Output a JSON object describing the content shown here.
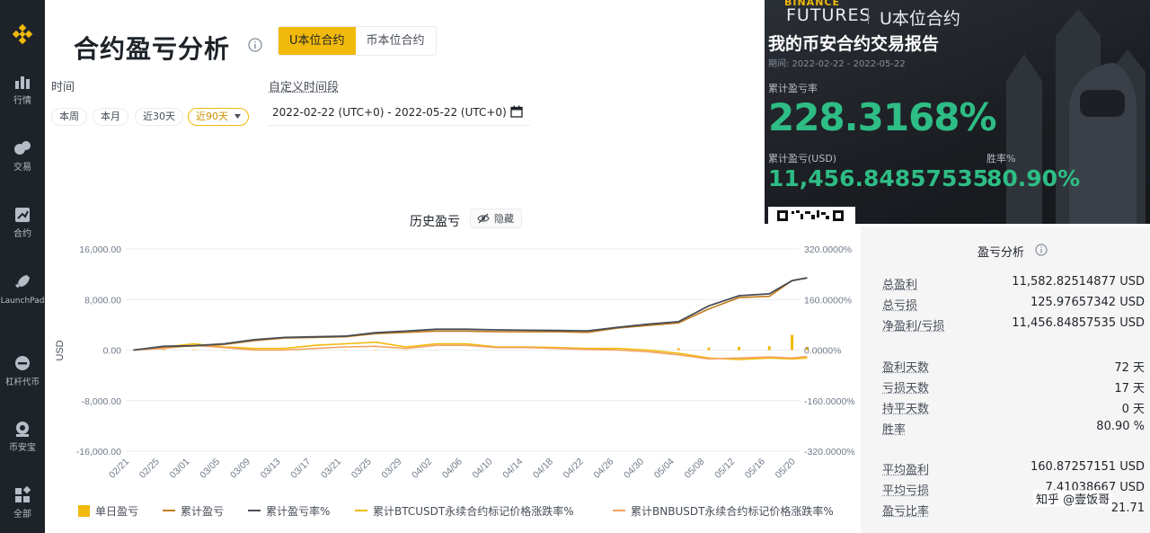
{
  "sidebar": {
    "items": [
      {
        "label": "行情",
        "icon": "market-chart-icon"
      },
      {
        "label": "交易",
        "icon": "trade-icon"
      },
      {
        "label": "合约",
        "icon": "futures-icon"
      },
      {
        "label": "LaunchPad",
        "icon": "rocket-icon"
      },
      {
        "label": "杠杆代币",
        "icon": "leveraged-token-icon"
      },
      {
        "label": "币安宝",
        "icon": "earn-icon"
      },
      {
        "label": "全部",
        "icon": "all-apps-icon"
      }
    ]
  },
  "header": {
    "title": "合约盈亏分析",
    "tabs": [
      {
        "label": "U本位合约",
        "active": true
      },
      {
        "label": "币本位合约",
        "active": false
      }
    ]
  },
  "filters": {
    "time_label": "时间",
    "presets": [
      "本周",
      "本月",
      "近30天",
      "近90天"
    ],
    "active_preset": "近90天",
    "custom_label": "自定义时间段",
    "date_range": "2022-02-22 (UTC+0)  -  2022-05-22 (UTC+0)"
  },
  "chart_header": {
    "title": "历史盈亏",
    "hide_label": "隐藏"
  },
  "colors": {
    "accent": "#f0b90b",
    "sidebar_bg": "#1e2329",
    "positive": "#2ebd85",
    "cum_pnl": "#c27c1b",
    "cum_roi": "#474d57",
    "btc": "#f0b90b",
    "bnb": "#f3a362"
  },
  "chart_data": {
    "type": "line",
    "ylabel": "USD",
    "ylim": [
      -16000,
      16000
    ],
    "y_ticks": [
      "16,000.00",
      "8,000.00",
      "0.00",
      "-8,000.00",
      "-16,000.00"
    ],
    "y2lim": [
      -320,
      320
    ],
    "y2_ticks": [
      "320.0000%",
      "160.0000%",
      "0.0000%",
      "-160.0000%",
      "-320.0000%"
    ],
    "x_labels": [
      "02/21",
      "02/25",
      "03/01",
      "03/05",
      "03/09",
      "03/13",
      "03/17",
      "03/21",
      "03/25",
      "03/29",
      "04/02",
      "04/06",
      "04/10",
      "04/14",
      "04/18",
      "04/22",
      "04/26",
      "04/30",
      "05/04",
      "05/08",
      "05/12",
      "05/16",
      "05/20"
    ],
    "x": [
      "02/22",
      "02/26",
      "03/02",
      "03/06",
      "03/10",
      "03/14",
      "03/18",
      "03/22",
      "03/26",
      "03/30",
      "04/03",
      "04/07",
      "04/11",
      "04/15",
      "04/19",
      "04/23",
      "04/27",
      "05/01",
      "05/05",
      "05/09",
      "05/13",
      "05/17",
      "05/20",
      "05/22"
    ],
    "series": [
      {
        "name": "单日盈亏",
        "kind": "bar",
        "values": [
          30,
          120,
          80,
          50,
          60,
          40,
          40,
          50,
          80,
          40,
          30,
          20,
          10,
          10,
          10,
          10,
          30,
          20,
          300,
          400,
          500,
          600,
          2400,
          500
        ]
      },
      {
        "name": "累计盈亏",
        "values": [
          0,
          500,
          650,
          900,
          1500,
          1900,
          2000,
          2100,
          2600,
          2800,
          3000,
          3000,
          2900,
          2900,
          2900,
          2800,
          3500,
          3900,
          4300,
          6500,
          8300,
          8500,
          11000,
          11456.85
        ]
      },
      {
        "name": "累计盈亏率%",
        "axis": "right",
        "values": [
          0,
          12,
          14,
          20,
          33,
          40,
          42,
          44,
          55,
          60,
          66,
          66,
          64,
          63,
          62,
          61,
          72,
          82,
          90,
          140,
          172,
          178,
          220,
          228.32
        ]
      },
      {
        "name": "累计BTCUSDT永续合约标记价格涨跌率%",
        "axis": "right",
        "values": [
          0,
          10,
          20,
          10,
          5,
          5,
          15,
          20,
          25,
          10,
          20,
          20,
          10,
          10,
          8,
          5,
          5,
          0,
          -10,
          -25,
          -30,
          -25,
          -28,
          -25
        ]
      },
      {
        "name": "累计BNBUSDT永续合约标记价格涨跌率%",
        "axis": "right",
        "values": [
          0,
          5,
          15,
          8,
          0,
          0,
          5,
          10,
          12,
          5,
          15,
          15,
          8,
          8,
          5,
          2,
          0,
          -5,
          -15,
          -28,
          -25,
          -22,
          -25,
          -20
        ]
      }
    ]
  },
  "report": {
    "brand": "BINANCE",
    "product": "FUTURES",
    "contract": "U本位合约",
    "heading": "我的币安合约交易报告",
    "period": "期间: 2022-02-22 - 2022-05-22",
    "roi_label": "累计盈亏率",
    "roi": "228.3168%",
    "pnl_label": "累计盈亏(USD)",
    "pnl": "11,456.84857535",
    "winrate_label": "胜率%",
    "winrate": "80.90%"
  },
  "analysis": {
    "title": "盈亏分析",
    "rows": [
      {
        "k": "总盈利",
        "v": "11,582.82514877 USD"
      },
      {
        "k": "总亏损",
        "v": "125.97657342 USD"
      },
      {
        "k": "净盈利/亏损",
        "v": "11,456.84857535 USD"
      },
      {
        "k": "盈利天数",
        "v": "72 天"
      },
      {
        "k": "亏损天数",
        "v": "17 天"
      },
      {
        "k": "持平天数",
        "v": "0 天"
      },
      {
        "k": "胜率",
        "v": "80.90 %"
      },
      {
        "k": "平均盈利",
        "v": "160.87257151 USD"
      },
      {
        "k": "平均亏损",
        "v": "7.41038667 USD"
      },
      {
        "k": "盈亏比率",
        "v": "21.71"
      }
    ]
  },
  "watermark": "知乎 @壹饭哥"
}
